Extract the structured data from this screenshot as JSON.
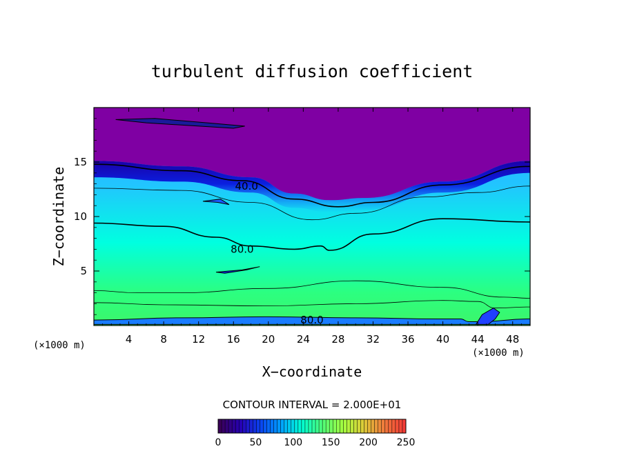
{
  "chart_data": {
    "type": "heatmap",
    "title": "turbulent diffusion coefficient",
    "xlabel": "X−coordinate",
    "ylabel": "Z−coordinate",
    "x_unit": "(×1000 m)",
    "y_unit": "(×1000 m)",
    "xlim": [
      0,
      50
    ],
    "ylim": [
      0,
      20
    ],
    "x_ticks": [
      4,
      8,
      12,
      16,
      20,
      24,
      28,
      32,
      36,
      40,
      44,
      48
    ],
    "y_ticks": [
      5,
      10,
      15
    ],
    "contour_interval_label": "CONTOUR INTERVAL = 2.000E+01",
    "contour_interval": 20,
    "contour_labels": [
      {
        "text": "40.0",
        "x": 17.5,
        "y": 12.8
      },
      {
        "text": "80.0",
        "x": 17.0,
        "y": 7.0
      },
      {
        "text": "80.0",
        "x": 25.0,
        "y": 0.5
      }
    ],
    "colorbar": {
      "min": 0,
      "max": 250,
      "ticks": [
        0,
        50,
        100,
        150,
        200,
        250
      ],
      "colors": [
        "#3a0058",
        "#2600b4",
        "#0a44f0",
        "#00a2ff",
        "#00ffd4",
        "#50ff78",
        "#a4ff40",
        "#dccc38",
        "#f07c3c",
        "#f43c36"
      ]
    },
    "field_colors": {
      "upper": "#7f00a3",
      "transition": "#0a10d4",
      "middle": "#2ba8ff",
      "lower_middle": "#00ffe0",
      "lower": "#2cff80",
      "surface": "#3cf56a"
    }
  }
}
